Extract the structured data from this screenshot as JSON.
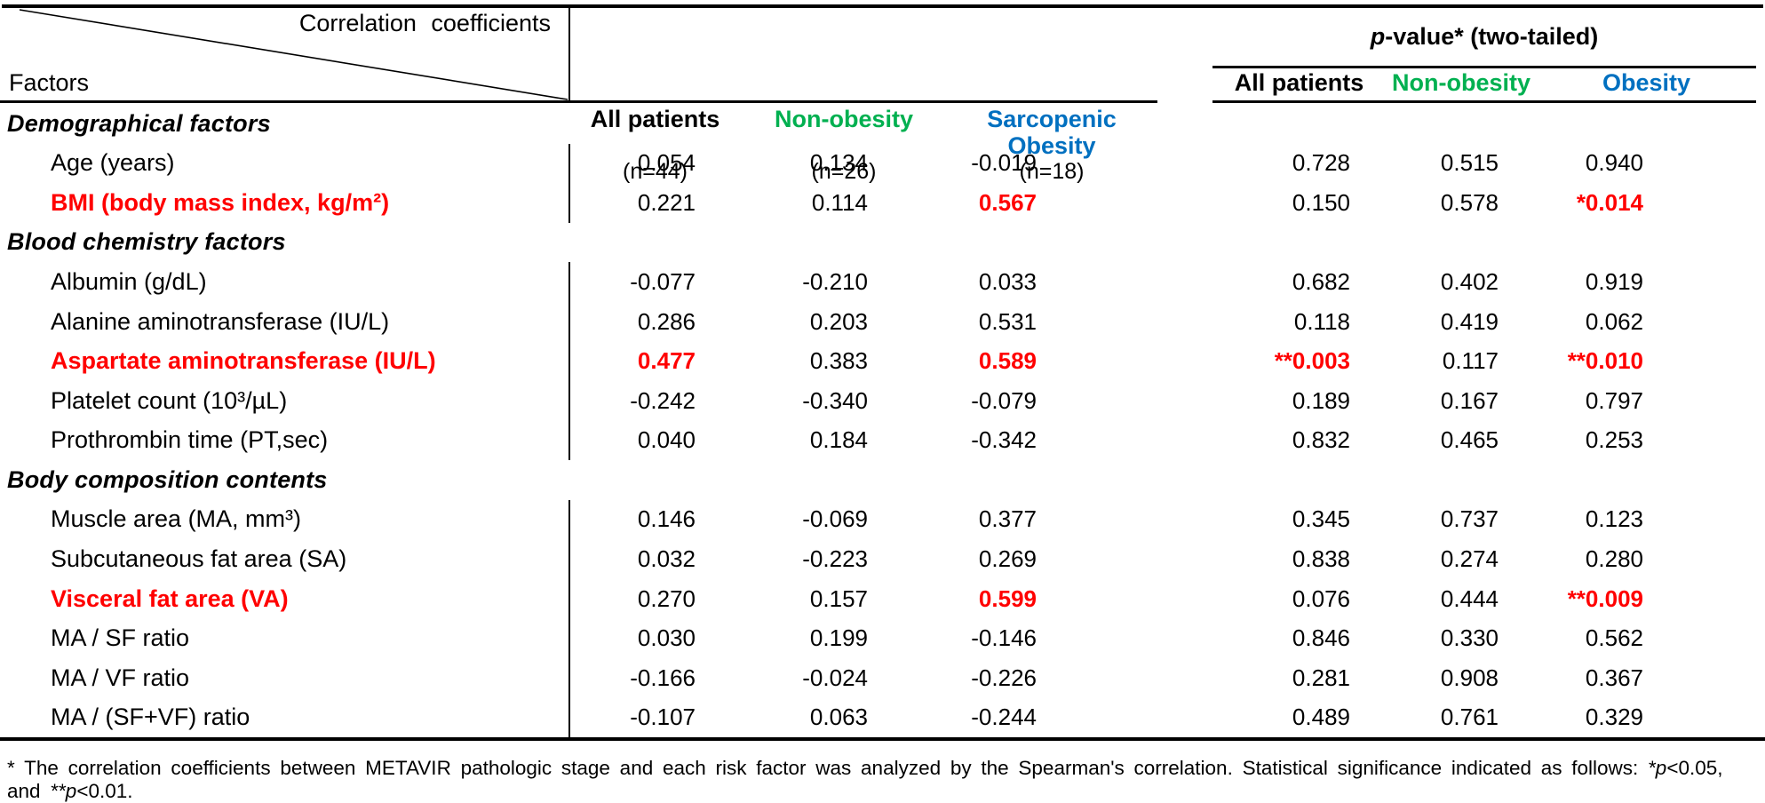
{
  "colors": {
    "red": "#FF0000",
    "green": "#00B050",
    "blue": "#0070C0",
    "black": "#000000"
  },
  "table": {
    "corner": {
      "top_label": "Correlation coefficients",
      "bottom_label": "Factors"
    },
    "correlation_columns": [
      {
        "label": "All patients",
        "n": "(n=44)",
        "color": "#000000"
      },
      {
        "label": "Non-obesity",
        "n": "(n=26)",
        "color": "#00B050"
      },
      {
        "label": "Sarcopenic\nObesity",
        "n": "(n=18)",
        "color": "#0070C0"
      }
    ],
    "pvalue": {
      "title_italic": "p",
      "title_rest": "-value* (two-tailed)",
      "columns": [
        {
          "label": "All patients",
          "color": "#000000"
        },
        {
          "label": "Non-obesity",
          "color": "#00B050"
        },
        {
          "label": "Obesity",
          "color": "#0070C0"
        }
      ]
    },
    "rows": [
      {
        "type": "section",
        "label": "Demographical factors"
      },
      {
        "type": "data",
        "label": "Age (years)",
        "cells": [
          {
            "t": "0.054"
          },
          {
            "t": "0.134"
          },
          {
            "t": "-0.019"
          },
          {
            "t": "0.728"
          },
          {
            "t": "0.515"
          },
          {
            "t": "0.940"
          }
        ]
      },
      {
        "type": "data",
        "label": "BMI (body mass index, kg/m²)",
        "red": true,
        "cells": [
          {
            "t": "0.221"
          },
          {
            "t": "0.114"
          },
          {
            "t": "0.567",
            "red": true
          },
          {
            "t": "0.150"
          },
          {
            "t": "0.578"
          },
          {
            "t": "*0.014",
            "red": true
          }
        ]
      },
      {
        "type": "section",
        "label": "Blood chemistry factors"
      },
      {
        "type": "data",
        "label": "Albumin (g/dL)",
        "cells": [
          {
            "t": "-0.077"
          },
          {
            "t": "-0.210"
          },
          {
            "t": "0.033"
          },
          {
            "t": "0.682"
          },
          {
            "t": "0.402"
          },
          {
            "t": "0.919"
          }
        ]
      },
      {
        "type": "data",
        "label": "Alanine aminotransferase (IU/L)",
        "cells": [
          {
            "t": "0.286"
          },
          {
            "t": "0.203"
          },
          {
            "t": "0.531"
          },
          {
            "t": "0.118"
          },
          {
            "t": "0.419"
          },
          {
            "t": "0.062"
          }
        ]
      },
      {
        "type": "data",
        "label": "Aspartate aminotransferase (IU/L)",
        "red": true,
        "cells": [
          {
            "t": "0.477",
            "red": true
          },
          {
            "t": "0.383"
          },
          {
            "t": "0.589",
            "red": true
          },
          {
            "t": "**0.003",
            "red": true
          },
          {
            "t": "0.117"
          },
          {
            "t": "**0.010",
            "red": true
          }
        ]
      },
      {
        "type": "data",
        "label": "Platelet count (10³/µL)",
        "cells": [
          {
            "t": "-0.242"
          },
          {
            "t": "-0.340"
          },
          {
            "t": "-0.079"
          },
          {
            "t": "0.189"
          },
          {
            "t": "0.167"
          },
          {
            "t": "0.797"
          }
        ]
      },
      {
        "type": "data",
        "label": "Prothrombin time (PT,sec)",
        "cells": [
          {
            "t": "0.040"
          },
          {
            "t": "0.184"
          },
          {
            "t": "-0.342"
          },
          {
            "t": "0.832"
          },
          {
            "t": "0.465"
          },
          {
            "t": "0.253"
          }
        ]
      },
      {
        "type": "section",
        "label": "Body composition contents"
      },
      {
        "type": "data",
        "label": "Muscle area (MA, mm³)",
        "cells": [
          {
            "t": "0.146"
          },
          {
            "t": "-0.069"
          },
          {
            "t": "0.377"
          },
          {
            "t": "0.345"
          },
          {
            "t": "0.737"
          },
          {
            "t": "0.123"
          }
        ]
      },
      {
        "type": "data",
        "label": "Subcutaneous fat area (SA)",
        "cells": [
          {
            "t": "0.032"
          },
          {
            "t": "-0.223"
          },
          {
            "t": "0.269"
          },
          {
            "t": "0.838"
          },
          {
            "t": "0.274"
          },
          {
            "t": "0.280"
          }
        ]
      },
      {
        "type": "data",
        "label": "Visceral fat area (VA)",
        "red": true,
        "cells": [
          {
            "t": "0.270"
          },
          {
            "t": "0.157"
          },
          {
            "t": "0.599",
            "red": true
          },
          {
            "t": "0.076"
          },
          {
            "t": "0.444"
          },
          {
            "t": "**0.009",
            "red": true
          }
        ]
      },
      {
        "type": "data",
        "label": "MA / SF ratio",
        "cells": [
          {
            "t": "0.030"
          },
          {
            "t": "0.199"
          },
          {
            "t": "-0.146"
          },
          {
            "t": "0.846"
          },
          {
            "t": "0.330"
          },
          {
            "t": "0.562"
          }
        ]
      },
      {
        "type": "data",
        "label": "MA / VF ratio",
        "cells": [
          {
            "t": "-0.166"
          },
          {
            "t": "-0.024"
          },
          {
            "t": "-0.226"
          },
          {
            "t": "0.281"
          },
          {
            "t": "0.908"
          },
          {
            "t": "0.367"
          }
        ]
      },
      {
        "type": "data",
        "label": "MA / (SF+VF) ratio",
        "cells": [
          {
            "t": "-0.107"
          },
          {
            "t": "0.063"
          },
          {
            "t": "-0.244"
          },
          {
            "t": "0.489"
          },
          {
            "t": "0.761"
          },
          {
            "t": "0.329"
          }
        ]
      }
    ]
  },
  "footnote": {
    "segments": [
      {
        "t": "* The correlation coefficients between METAVIR pathologic stage and each risk factor was analyzed by the Spearman's correlation. Statistical significance indicated as follows: "
      },
      {
        "t": "*p",
        "i": true
      },
      {
        "t": "<0.05, and "
      },
      {
        "t": "**p",
        "i": true
      },
      {
        "t": "<0.01."
      }
    ]
  }
}
